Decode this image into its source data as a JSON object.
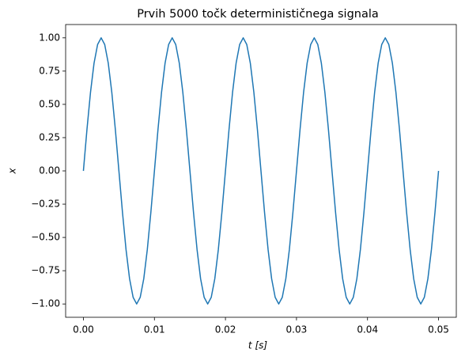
{
  "chart_data": {
    "type": "line",
    "title": "Prvih 5000 točk determinističnega signala",
    "xlabel": "t [s]",
    "ylabel": "x",
    "xlim": [
      -0.0025,
      0.0525
    ],
    "ylim": [
      -1.1,
      1.1
    ],
    "xticks": [
      {
        "value": 0,
        "label": "0.00"
      },
      {
        "value": 0.01,
        "label": "0.01"
      },
      {
        "value": 0.02,
        "label": "0.02"
      },
      {
        "value": 0.03,
        "label": "0.03"
      },
      {
        "value": 0.04,
        "label": "0.04"
      },
      {
        "value": 0.05,
        "label": "0.05"
      }
    ],
    "yticks": [
      {
        "value": -1,
        "label": "−1.00"
      },
      {
        "value": -0.75,
        "label": "−0.75"
      },
      {
        "value": -0.5,
        "label": "−0.50"
      },
      {
        "value": -0.25,
        "label": "−0.25"
      },
      {
        "value": 0,
        "label": "0.00"
      },
      {
        "value": 0.25,
        "label": "0.25"
      },
      {
        "value": 0.5,
        "label": "0.50"
      },
      {
        "value": 0.75,
        "label": "0.75"
      },
      {
        "value": 1,
        "label": "1.00"
      }
    ],
    "x": [
      0,
      0.0005,
      0.001,
      0.0015,
      0.002,
      0.0025,
      0.003,
      0.0035,
      0.004,
      0.0045,
      0.005,
      0.0055,
      0.006,
      0.0065,
      0.007,
      0.0075,
      0.008,
      0.0085,
      0.009,
      0.0095,
      0.01,
      0.0105,
      0.011,
      0.0115,
      0.012,
      0.0125,
      0.013,
      0.0135,
      0.014,
      0.0145,
      0.015,
      0.0155,
      0.016,
      0.0165,
      0.017,
      0.0175,
      0.018,
      0.0185,
      0.019,
      0.0195,
      0.02,
      0.0205,
      0.021,
      0.0215,
      0.022,
      0.0225,
      0.023,
      0.0235,
      0.024,
      0.0245,
      0.025,
      0.0255,
      0.026,
      0.0265,
      0.027,
      0.0275,
      0.028,
      0.0285,
      0.029,
      0.0295,
      0.03,
      0.0305,
      0.031,
      0.0315,
      0.032,
      0.0325,
      0.033,
      0.0335,
      0.034,
      0.0345,
      0.035,
      0.0355,
      0.036,
      0.0365,
      0.037,
      0.0375,
      0.038,
      0.0385,
      0.039,
      0.0395,
      0.04,
      0.0405,
      0.041,
      0.0415,
      0.042,
      0.0425,
      0.043,
      0.0435,
      0.044,
      0.0445,
      0.045,
      0.0455,
      0.046,
      0.0465,
      0.047,
      0.0475,
      0.048,
      0.0485,
      0.049,
      0.0495,
      0.05
    ],
    "series": [
      {
        "color": "#1f77b4",
        "values": [
          0,
          0.31,
          0.59,
          0.81,
          0.95,
          1,
          0.95,
          0.81,
          0.59,
          0.31,
          0,
          -0.31,
          -0.59,
          -0.81,
          -0.95,
          -1,
          -0.95,
          -0.81,
          -0.59,
          -0.31,
          0,
          0.31,
          0.59,
          0.81,
          0.95,
          1,
          0.95,
          0.81,
          0.59,
          0.31,
          0,
          -0.31,
          -0.59,
          -0.81,
          -0.95,
          -1,
          -0.95,
          -0.81,
          -0.59,
          -0.31,
          0,
          0.31,
          0.59,
          0.81,
          0.95,
          1,
          0.95,
          0.81,
          0.59,
          0.31,
          0,
          -0.31,
          -0.59,
          -0.81,
          -0.95,
          -1,
          -0.95,
          -0.81,
          -0.59,
          -0.31,
          0,
          0.31,
          0.59,
          0.81,
          0.95,
          1,
          0.95,
          0.81,
          0.59,
          0.31,
          0,
          -0.31,
          -0.59,
          -0.81,
          -0.95,
          -1,
          -0.95,
          -0.81,
          -0.59,
          -0.31,
          0,
          0.31,
          0.59,
          0.81,
          0.95,
          1,
          0.95,
          0.81,
          0.59,
          0.31,
          0,
          -0.31,
          -0.59,
          -0.81,
          -0.95,
          -1,
          -0.95,
          -0.81,
          -0.59,
          -0.31,
          0
        ]
      }
    ]
  }
}
